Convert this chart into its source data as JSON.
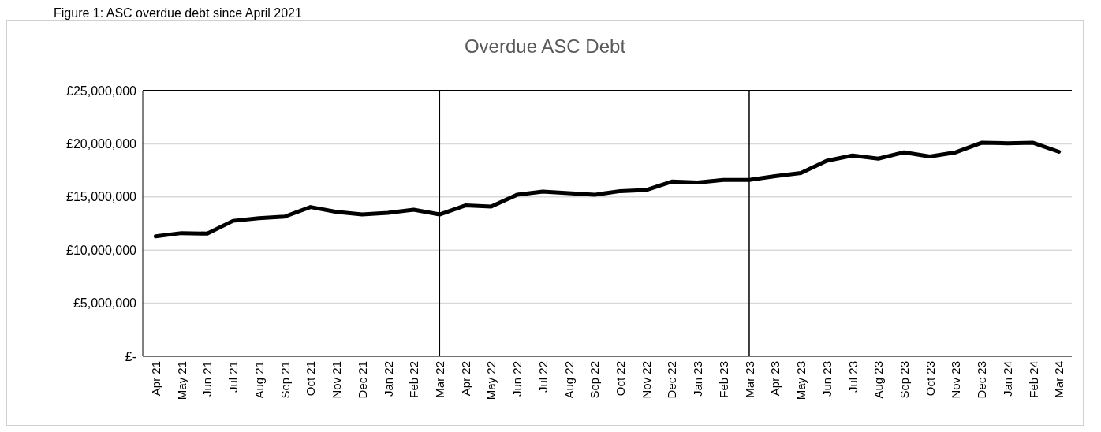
{
  "chart_data": {
    "type": "line",
    "title": "Overdue ASC Debt",
    "annotations": [
      "Figure 1: ASC overdue debt since April 2021"
    ],
    "categories": [
      "Apr 21",
      "May 21",
      "Jun 21",
      "Jul 21",
      "Aug 21",
      "Sep 21",
      "Oct 21",
      "Nov 21",
      "Dec 21",
      "Jan 22",
      "Feb 22",
      "Mar 22",
      "Apr 22",
      "May 22",
      "Jun 22",
      "Jul 22",
      "Aug 22",
      "Sep 22",
      "Oct 22",
      "Nov 22",
      "Dec 22",
      "Jan 23",
      "Feb 23",
      "Mar 23",
      "Apr 23",
      "May 23",
      "Jun 23",
      "Jul 23",
      "Aug 23",
      "Sep 23",
      "Oct 23",
      "Nov 23",
      "Dec 23",
      "Jan 24",
      "Feb 24",
      "Mar 24"
    ],
    "series": [
      {
        "color": "#000000",
        "values": [
          11300000,
          11600000,
          11550000,
          12750000,
          13000000,
          13150000,
          14050000,
          13600000,
          13350000,
          13500000,
          13800000,
          13350000,
          14200000,
          14100000,
          15200000,
          15500000,
          15350000,
          15200000,
          15550000,
          15650000,
          16450000,
          16350000,
          16600000,
          16600000,
          16950000,
          17250000,
          18400000,
          18900000,
          18600000,
          19200000,
          18800000,
          19200000,
          20100000,
          20050000,
          20100000,
          19250000
        ]
      }
    ],
    "ylim": [
      0,
      25000000
    ],
    "yticks": [
      {
        "value": 0,
        "label": "£-"
      },
      {
        "value": 5000000,
        "label": "£5,000,000"
      },
      {
        "value": 10000000,
        "label": "£10,000,000"
      },
      {
        "value": 15000000,
        "label": "£15,000,000"
      },
      {
        "value": 20000000,
        "label": "£20,000,000"
      },
      {
        "value": 25000000,
        "label": "£25,000,000"
      }
    ],
    "grid": "y",
    "marker": "none",
    "line_style": "solid",
    "ref_lines": [
      {
        "axis": "x",
        "value": "Mar 22",
        "color": "#000000"
      },
      {
        "axis": "x",
        "value": "Mar 23",
        "color": "#000000"
      }
    ]
  }
}
